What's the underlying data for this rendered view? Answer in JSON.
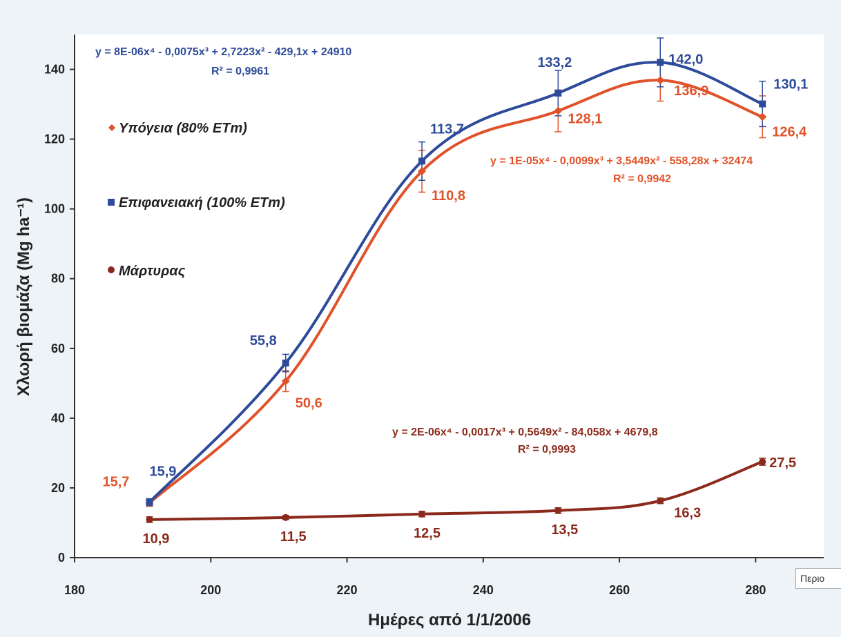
{
  "tooltip": {
    "text": "Περιο"
  },
  "colors": {
    "subsurface": "#e0532a",
    "surface": "#2d4b9a",
    "control": "#8b2a1c",
    "axis": "#333333",
    "panel": "#eef3f8"
  },
  "chart_data": {
    "type": "line",
    "xlabel": "Ημέρες από 1/1/2006",
    "ylabel": "Χλωρή βιομάζα (Mg ha⁻¹)",
    "xlim": [
      180,
      290
    ],
    "ylim": [
      0,
      150
    ],
    "xticks": [
      180,
      200,
      220,
      240,
      260,
      280
    ],
    "yticks": [
      0,
      20,
      40,
      60,
      80,
      100,
      120,
      140
    ],
    "grid": false,
    "legend": {
      "placement": "left"
    },
    "x": [
      191,
      211,
      231,
      251,
      266,
      281
    ],
    "series": [
      {
        "key": "subsurface",
        "name": "Υπόγεια (80% ETm)",
        "marker": "diamond",
        "values": [
          15.7,
          50.6,
          110.8,
          128.1,
          136.9,
          126.4
        ],
        "labels": [
          "15,7",
          "50,6",
          "110,8",
          "128,1",
          "136,9",
          "126,4"
        ],
        "errors": [
          1.0,
          3.0,
          6.0,
          6.0,
          6.0,
          6.0
        ],
        "trendline": {
          "equation": "y = 1E-05x⁴ - 0,0099x³ + 3,5449x² - 558,28x + 32474",
          "r2": "R² = 0,9942"
        }
      },
      {
        "key": "surface",
        "name": "Επιφανειακή (100% ETm)",
        "marker": "square",
        "values": [
          15.9,
          55.8,
          113.7,
          133.2,
          142.0,
          130.1
        ],
        "labels": [
          "15,9",
          "55,8",
          "113,7",
          "133,2",
          "142,0",
          "130,1"
        ],
        "errors": [
          1.0,
          2.5,
          5.5,
          6.5,
          7.0,
          6.5
        ],
        "trendline": {
          "equation": "y = 8E-06x⁴ - 0,0075x³ + 2,7223x² - 429,1x + 24910",
          "r2": "R² = 0,9961"
        }
      },
      {
        "key": "control",
        "name": "Μάρτυρας",
        "marker": "circle",
        "values": [
          10.9,
          11.5,
          12.5,
          13.5,
          16.3,
          27.5
        ],
        "labels": [
          "10,9",
          "11,5",
          "12,5",
          "13,5",
          "16,3",
          "27,5"
        ],
        "errors": [
          0.8,
          0.6,
          0.8,
          0.8,
          0.8,
          1.0
        ],
        "trendline": {
          "equation": "y = 2E-06x⁴ - 0,0017x³ + 0,5649x² - 84,058x + 4679,8",
          "r2": "R² = 0,9993"
        }
      }
    ]
  }
}
